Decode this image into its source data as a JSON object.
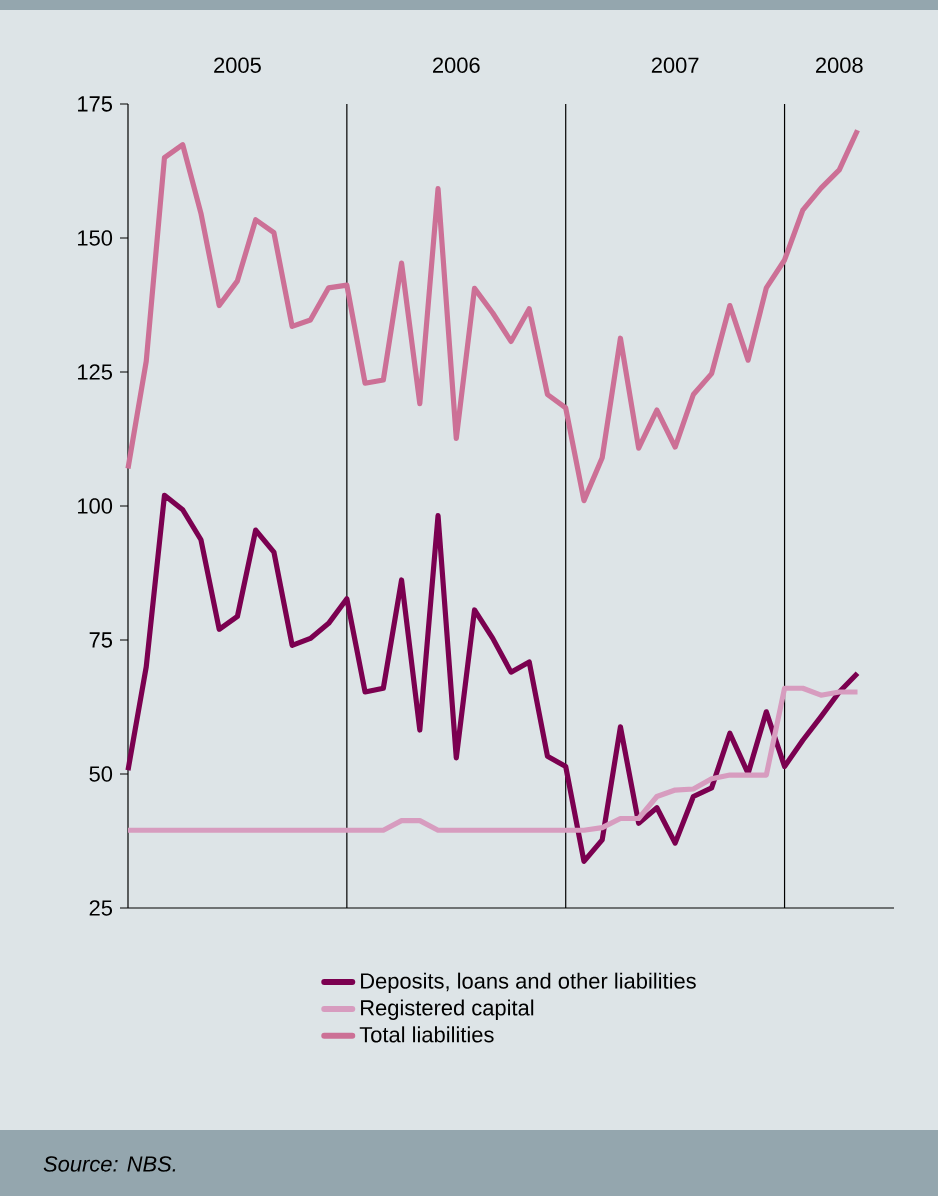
{
  "chart_data": {
    "type": "line",
    "x": [
      "2005-01",
      "2005-02",
      "2005-03",
      "2005-04",
      "2005-05",
      "2005-06",
      "2005-07",
      "2005-08",
      "2005-09",
      "2005-10",
      "2005-11",
      "2005-12",
      "2006-01",
      "2006-02",
      "2006-03",
      "2006-04",
      "2006-05",
      "2006-06",
      "2006-07",
      "2006-08",
      "2006-09",
      "2006-10",
      "2006-11",
      "2006-12",
      "2007-01",
      "2007-02",
      "2007-03",
      "2007-04",
      "2007-05",
      "2007-06",
      "2007-07",
      "2007-08",
      "2007-09",
      "2007-10",
      "2007-11",
      "2007-12",
      "2008-01",
      "2008-02",
      "2008-03",
      "2008-04",
      "2008-05"
    ],
    "xlim": [
      "2005-01",
      "2008-07"
    ],
    "xticks": [
      {
        "value": "2005-07",
        "label": "2005"
      },
      {
        "value": "2006-07",
        "label": "2006"
      },
      {
        "value": "2007-07",
        "label": "2007"
      },
      {
        "value": "2008-04",
        "label": "2008"
      }
    ],
    "ylim": [
      25,
      175
    ],
    "yticks": [
      25,
      50,
      75,
      100,
      125,
      150,
      175
    ],
    "series": [
      {
        "name": "Deposits, loans and other liabilities",
        "color": "#7b0050",
        "values": [
          50.7,
          70,
          102,
          99.3,
          93.7,
          77,
          79.4,
          95.5,
          91.4,
          74,
          75.3,
          78.1,
          82.7,
          65.3,
          66,
          86.2,
          58.2,
          98.2,
          53,
          80.6,
          75.3,
          69,
          70.9,
          53.3,
          51.4,
          33.7,
          37.7,
          58.8,
          40.8,
          43.7,
          37.1,
          45.8,
          47.4,
          57.6,
          50.1,
          61.6,
          51.4,
          56.3,
          60.7,
          65.3,
          68.8
        ]
      },
      {
        "name": "Registered capital",
        "color": "#d79cbf",
        "values": [
          39.5,
          39.5,
          39.5,
          39.5,
          39.5,
          39.5,
          39.5,
          39.5,
          39.5,
          39.5,
          39.5,
          39.5,
          39.5,
          39.5,
          39.5,
          41.3,
          41.3,
          39.5,
          39.5,
          39.5,
          39.5,
          39.5,
          39.5,
          39.5,
          39.5,
          39.5,
          40,
          41.7,
          41.7,
          45.8,
          47,
          47.2,
          49.1,
          49.8,
          49.8,
          49.8,
          66,
          66,
          64.7,
          65.3,
          65.3
        ]
      },
      {
        "name": "Total liabilities",
        "color": "#cc7096",
        "values": [
          107,
          127,
          165,
          167.4,
          154.6,
          137.4,
          142,
          153.4,
          151,
          133.5,
          134.7,
          140.7,
          141.2,
          122.9,
          123.5,
          145.3,
          119.1,
          159.2,
          112.6,
          140.6,
          136,
          130.7,
          136.8,
          120.8,
          118.3,
          101,
          109,
          131.3,
          110.8,
          117.9,
          111,
          120.8,
          124.7,
          137.4,
          127.2,
          140.7,
          145.9,
          155.2,
          159.3,
          162.7,
          170.1
        ]
      }
    ],
    "ref_lines": [
      {
        "axis": "x",
        "value": "2006-01",
        "color": "#000000"
      },
      {
        "axis": "x",
        "value": "2007-01",
        "color": "#000000"
      },
      {
        "axis": "x",
        "value": "2008-01",
        "color": "#000000"
      }
    ],
    "legend": "bottom",
    "marker": "none",
    "line_style": "solid",
    "annotations": [
      "Source: NBS."
    ]
  }
}
